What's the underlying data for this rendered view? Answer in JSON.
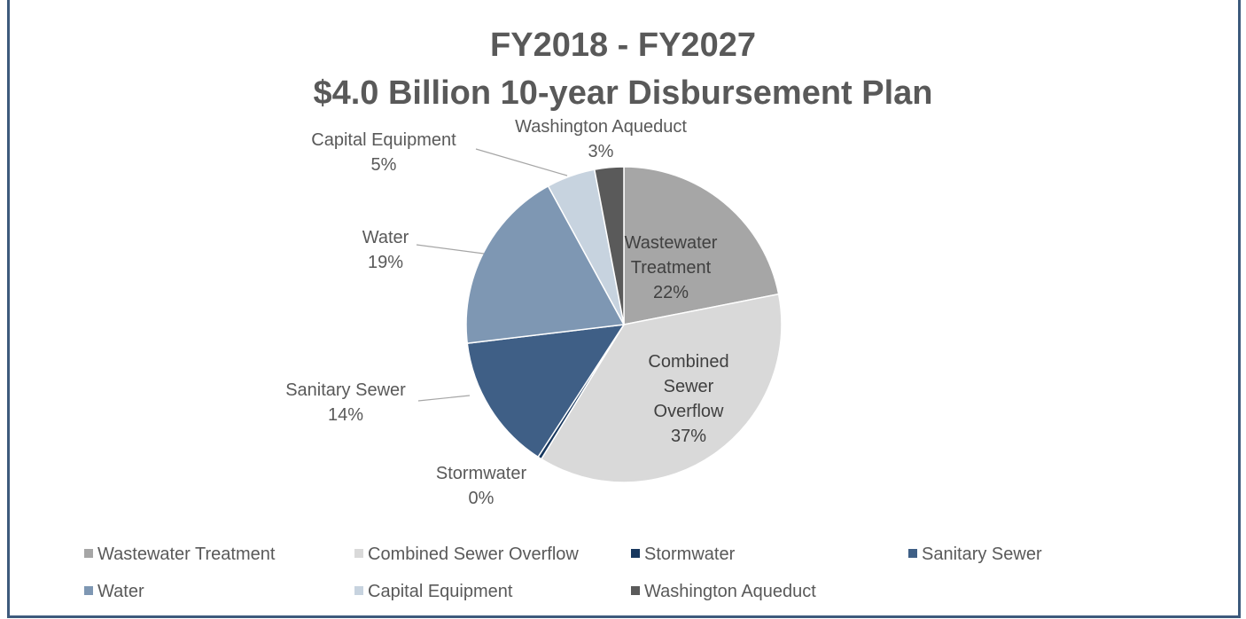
{
  "chart_data": {
    "type": "pie",
    "title": "FY2018 - FY2027",
    "subtitle": "$4.0 Billion 10-year Disbursement Plan",
    "categories": [
      "Wastewater Treatment",
      "Combined Sewer Overflow",
      "Stormwater",
      "Sanitary Sewer",
      "Water",
      "Capital Equipment",
      "Washington Aqueduct"
    ],
    "values": [
      22,
      37,
      0.4,
      14,
      19,
      5,
      3
    ],
    "value_labels": [
      "22%",
      "37%",
      "0%",
      "14%",
      "19%",
      "5%",
      "3%"
    ],
    "colors": [
      "#a6a6a6",
      "#d9d9d9",
      "#17375e",
      "#3f5f86",
      "#7e97b3",
      "#c7d3df",
      "#5a5a5a"
    ],
    "legend": "bottom"
  }
}
